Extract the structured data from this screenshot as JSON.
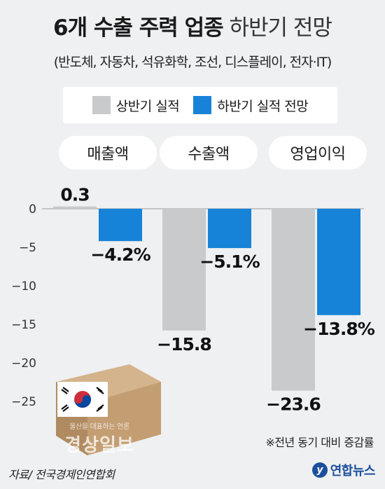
{
  "title_bold": "6개 수출 주력 업종",
  "title_light": "하반기 전망",
  "subtitle": "(반도체, 자동차, 석유화학, 조선, 디스플레이, 전자·IT)",
  "legend": [
    {
      "label": "상반기 실적",
      "color": "#c8cacc"
    },
    {
      "label": "하반기 실적 전망",
      "color": "#1783d8"
    }
  ],
  "note": "※전년 동기 대비 증감률",
  "source": "자료/ 전국경제인연합회",
  "logo": "연합뉴스",
  "watermark": {
    "small": "울산을 대표하는 언론",
    "big": "경상일보"
  },
  "chart_data": {
    "type": "bar",
    "categories": [
      "매출액",
      "수출액",
      "영업이익"
    ],
    "series": [
      {
        "name": "상반기 실적",
        "color": "#c8cacc",
        "values": [
          0.3,
          -15.8,
          -23.6
        ],
        "labels": [
          "0.3",
          "−15.8",
          "−23.6"
        ]
      },
      {
        "name": "하반기 실적 전망",
        "color": "#1783d8",
        "values": [
          -4.2,
          -5.1,
          -13.8
        ],
        "labels": [
          "−4.2%",
          "−5.1%",
          "−13.8%"
        ]
      }
    ],
    "yticks": [
      0,
      -5,
      -10,
      -15,
      -20,
      -25
    ],
    "ytick_labels": [
      "0",
      "−5",
      "−10",
      "−15",
      "−20",
      "−25"
    ],
    "ylim": [
      -27,
      1
    ],
    "grid": false
  }
}
